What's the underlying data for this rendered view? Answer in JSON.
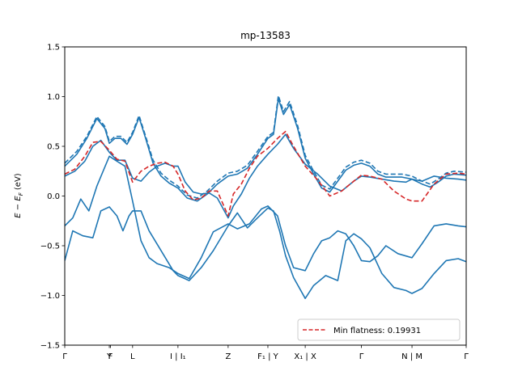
{
  "chart_data": {
    "type": "line",
    "title": "mp-13583",
    "ylabel": "E − E_F (eV)",
    "ylabel_parts": {
      "E": "E",
      "minus": " − ",
      "E2": "E",
      "sub": "F",
      "unit": " (eV)"
    },
    "xlabel": "",
    "ylim": [
      -1.5,
      1.5
    ],
    "xlim": [
      0,
      10
    ],
    "y_ticks": [
      {
        "value": 1.5,
        "label": "1.5"
      },
      {
        "value": 1.0,
        "label": "1.0"
      },
      {
        "value": 0.5,
        "label": "0.5"
      },
      {
        "value": 0.0,
        "label": "0.0"
      },
      {
        "value": -0.5,
        "label": "−0.5"
      },
      {
        "value": -1.0,
        "label": "−1.0"
      },
      {
        "value": -1.5,
        "label": "−1.5"
      }
    ],
    "x_ticks": [
      {
        "value": 0.0,
        "label": "Γ"
      },
      {
        "value": 1.11,
        "label": "Y"
      },
      {
        "value": 1.14,
        "label": "F"
      },
      {
        "value": 1.69,
        "label": "L"
      },
      {
        "value": 2.82,
        "label": "I | I₁"
      },
      {
        "value": 4.07,
        "label": "Z"
      },
      {
        "value": 5.06,
        "label": "F₁ | Y"
      },
      {
        "value": 5.99,
        "label": "X₁ | X"
      },
      {
        "value": 7.39,
        "label": "Γ"
      },
      {
        "value": 8.65,
        "label": "N | M"
      },
      {
        "value": 10.0,
        "label": "Γ"
      }
    ],
    "grid": false,
    "legend": {
      "placement": "lower-right",
      "entries": [
        "Min flatness: 0.19931"
      ]
    },
    "colors": {
      "band": "#1f77b4",
      "flat_band": "#d62728"
    },
    "series": [
      {
        "style": "solid",
        "color": "#1f77b4",
        "x": [
          0,
          0.3,
          0.55,
          0.8,
          1.0,
          1.11,
          1.25,
          1.4,
          1.55,
          1.69,
          1.85,
          2.0,
          2.2,
          2.4,
          2.6,
          2.82,
          3.05,
          3.3,
          3.55,
          3.8,
          4.07,
          4.3,
          4.55,
          4.8,
          5.06,
          5.2,
          5.32,
          5.45,
          5.6,
          5.8,
          5.99,
          6.2,
          6.4,
          6.6,
          6.8,
          7.0,
          7.2,
          7.39,
          7.6,
          7.8,
          8.0,
          8.2,
          8.4,
          8.65,
          8.9,
          9.1,
          9.3,
          9.5,
          9.7,
          10.0
        ],
        "y": [
          0.3,
          0.42,
          0.58,
          0.78,
          0.68,
          0.53,
          0.58,
          0.58,
          0.52,
          0.62,
          0.79,
          0.6,
          0.33,
          0.2,
          0.13,
          0.08,
          -0.02,
          -0.05,
          0.02,
          0.12,
          0.2,
          0.22,
          0.28,
          0.42,
          0.58,
          0.62,
          0.98,
          0.82,
          0.92,
          0.68,
          0.38,
          0.22,
          0.08,
          0.04,
          0.15,
          0.26,
          0.31,
          0.33,
          0.3,
          0.22,
          0.19,
          0.19,
          0.19,
          0.17,
          0.12,
          0.09,
          0.14,
          0.2,
          0.22,
          0.21
        ]
      },
      {
        "style": "dashed",
        "color": "#1f77b4",
        "x": [
          0,
          0.3,
          0.55,
          0.8,
          1.0,
          1.11,
          1.25,
          1.4,
          1.55,
          1.69,
          1.85,
          2.0,
          2.2,
          2.4,
          2.6,
          2.82,
          3.05,
          3.3,
          3.55,
          3.8,
          4.07,
          4.3,
          4.55,
          4.8,
          5.06,
          5.2,
          5.32,
          5.45,
          5.6,
          5.8,
          5.99,
          6.2,
          6.4,
          6.6,
          6.8,
          7.0,
          7.2,
          7.39,
          7.6,
          7.8,
          8.0,
          8.2,
          8.4,
          8.65,
          8.9,
          9.1,
          9.3,
          9.5,
          9.7,
          10.0
        ],
        "y": [
          0.33,
          0.45,
          0.6,
          0.8,
          0.7,
          0.55,
          0.6,
          0.6,
          0.54,
          0.64,
          0.81,
          0.62,
          0.36,
          0.23,
          0.16,
          0.1,
          0.01,
          -0.02,
          0.05,
          0.15,
          0.23,
          0.25,
          0.31,
          0.45,
          0.6,
          0.64,
          1.01,
          0.85,
          0.95,
          0.71,
          0.41,
          0.25,
          0.11,
          0.07,
          0.18,
          0.29,
          0.34,
          0.36,
          0.33,
          0.25,
          0.22,
          0.22,
          0.22,
          0.2,
          0.15,
          0.12,
          0.17,
          0.23,
          0.25,
          0.24
        ]
      },
      {
        "style": "solid",
        "color": "#1f77b4",
        "x": [
          0,
          0.25,
          0.5,
          0.7,
          0.9,
          1.11,
          1.3,
          1.5,
          1.69,
          1.9,
          2.1,
          2.3,
          2.5,
          2.7,
          2.82,
          3.0,
          3.2,
          3.4,
          3.6,
          3.8,
          4.07,
          4.2,
          4.4,
          4.6,
          4.8,
          5.06,
          5.3,
          5.5,
          5.7,
          5.99,
          6.3,
          6.6,
          6.9,
          7.2,
          7.39,
          7.6,
          7.9,
          8.2,
          8.5,
          8.65,
          8.9,
          9.2,
          9.5,
          9.8,
          10.0
        ],
        "y": [
          0.2,
          0.25,
          0.35,
          0.5,
          0.56,
          0.44,
          0.36,
          0.36,
          0.18,
          0.15,
          0.24,
          0.3,
          0.33,
          0.3,
          0.3,
          0.14,
          0.04,
          0.02,
          0.03,
          -0.02,
          -0.22,
          -0.1,
          0.02,
          0.18,
          0.3,
          0.42,
          0.52,
          0.62,
          0.48,
          0.32,
          0.22,
          0.1,
          0.05,
          0.15,
          0.2,
          0.19,
          0.17,
          0.15,
          0.14,
          0.17,
          0.15,
          0.2,
          0.18,
          0.17,
          0.16
        ]
      },
      {
        "style": "flat",
        "color": "#d62728",
        "x": [
          0,
          0.25,
          0.5,
          0.7,
          0.9,
          1.11,
          1.3,
          1.5,
          1.69,
          1.9,
          2.1,
          2.3,
          2.5,
          2.7,
          2.82,
          3.0,
          3.2,
          3.4,
          3.6,
          3.8,
          4.07,
          4.2,
          4.4,
          4.6,
          4.8,
          5.06,
          5.3,
          5.5,
          5.7,
          5.99,
          6.3,
          6.6,
          6.9,
          7.2,
          7.39,
          7.6,
          7.9,
          8.2,
          8.5,
          8.65,
          8.9,
          9.2,
          9.5,
          9.8,
          10.0
        ],
        "y": [
          0.22,
          0.27,
          0.4,
          0.54,
          0.55,
          0.46,
          0.37,
          0.35,
          0.14,
          0.25,
          0.3,
          0.33,
          0.34,
          0.3,
          0.22,
          0.05,
          -0.04,
          -0.02,
          0.05,
          0.05,
          -0.2,
          0.02,
          0.12,
          0.28,
          0.4,
          0.48,
          0.58,
          0.65,
          0.5,
          0.3,
          0.16,
          0.0,
          0.05,
          0.15,
          0.21,
          0.2,
          0.17,
          0.05,
          -0.03,
          -0.05,
          -0.05,
          0.12,
          0.22,
          0.23,
          0.22
        ]
      },
      {
        "style": "solid",
        "color": "#1f77b4",
        "x": [
          0,
          0.2,
          0.4,
          0.6,
          0.8,
          1.11,
          1.3,
          1.5,
          1.69,
          1.9,
          2.1,
          2.3,
          2.6,
          2.82,
          3.1,
          3.4,
          3.7,
          4.07,
          4.3,
          4.6,
          4.9,
          5.06,
          5.3,
          5.5,
          5.7,
          5.99,
          6.2,
          6.4,
          6.6,
          6.8,
          7.0,
          7.2,
          7.39,
          7.6,
          7.8,
          8.0,
          8.3,
          8.65,
          8.9,
          9.2,
          9.5,
          9.8,
          10.0
        ],
        "y": [
          -0.3,
          -0.22,
          -0.03,
          -0.15,
          0.1,
          0.4,
          0.35,
          0.3,
          -0.05,
          -0.45,
          -0.62,
          -0.68,
          -0.72,
          -0.78,
          -0.83,
          -0.62,
          -0.36,
          -0.28,
          -0.33,
          -0.28,
          -0.13,
          -0.1,
          -0.2,
          -0.5,
          -0.72,
          -0.75,
          -0.58,
          -0.45,
          -0.42,
          -0.35,
          -0.38,
          -0.5,
          -0.65,
          -0.66,
          -0.6,
          -0.5,
          -0.58,
          -0.62,
          -0.48,
          -0.3,
          -0.28,
          -0.3,
          -0.31
        ]
      },
      {
        "style": "solid",
        "color": "#1f77b4",
        "x": [
          0,
          0.2,
          0.45,
          0.7,
          0.9,
          1.11,
          1.3,
          1.45,
          1.6,
          1.69,
          1.9,
          2.1,
          2.4,
          2.7,
          2.82,
          3.1,
          3.4,
          3.7,
          4.07,
          4.3,
          4.55,
          4.8,
          5.06,
          5.2,
          5.35,
          5.5,
          5.7,
          5.99,
          6.2,
          6.5,
          6.8,
          7.0,
          7.2,
          7.39,
          7.6,
          7.9,
          8.2,
          8.5,
          8.65,
          8.9,
          9.2,
          9.5,
          9.8,
          10.0
        ],
        "y": [
          -0.65,
          -0.35,
          -0.4,
          -0.42,
          -0.15,
          -0.11,
          -0.2,
          -0.35,
          -0.2,
          -0.15,
          -0.15,
          -0.35,
          -0.55,
          -0.75,
          -0.8,
          -0.85,
          -0.72,
          -0.55,
          -0.3,
          -0.17,
          -0.32,
          -0.22,
          -0.12,
          -0.15,
          -0.35,
          -0.6,
          -0.82,
          -1.03,
          -0.9,
          -0.8,
          -0.85,
          -0.45,
          -0.38,
          -0.43,
          -0.52,
          -0.78,
          -0.92,
          -0.95,
          -0.98,
          -0.93,
          -0.78,
          -0.65,
          -0.63,
          -0.66
        ]
      }
    ]
  }
}
